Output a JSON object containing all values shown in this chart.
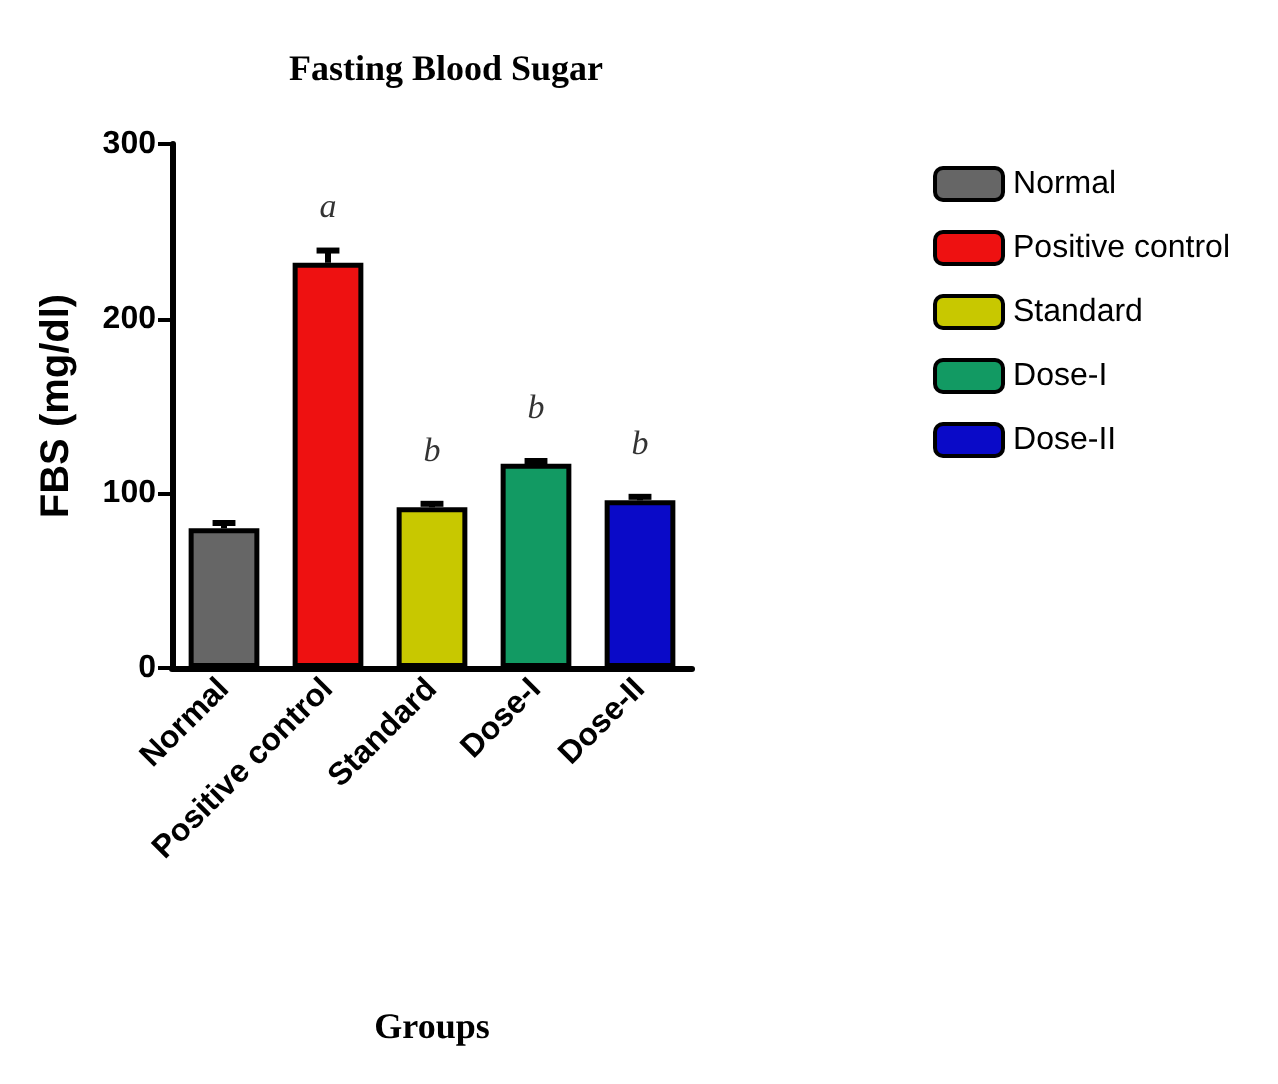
{
  "chart_data": {
    "type": "bar",
    "title": "Fasting Blood Sugar",
    "xlabel": "Groups",
    "ylabel": "FBS (mg/dl)",
    "categories": [
      "Normal",
      "Positive control",
      "Standard",
      "Dose-I",
      "Dose-II"
    ],
    "series": [
      {
        "name": "Normal",
        "color": "#666666",
        "values": [
          80,
          null,
          null,
          null,
          null
        ],
        "errors": [
          3,
          null,
          null,
          null,
          null
        ]
      },
      {
        "name": "Positive control",
        "color": "#ee1111",
        "values": [
          null,
          232,
          null,
          null,
          null
        ],
        "errors": [
          null,
          7,
          null,
          null,
          null
        ]
      },
      {
        "name": "Standard",
        "color": "#c8c800",
        "values": [
          null,
          null,
          92,
          null,
          null
        ],
        "errors": [
          null,
          null,
          2,
          null,
          null
        ]
      },
      {
        "name": "Dose-I",
        "color": "#129a63",
        "values": [
          null,
          null,
          null,
          117,
          null
        ],
        "errors": [
          null,
          null,
          null,
          1.5,
          null
        ]
      },
      {
        "name": "Dose-II",
        "color": "#0a0ac8",
        "values": [
          null,
          null,
          null,
          null,
          96
        ],
        "errors": [
          null,
          null,
          null,
          null,
          2
        ]
      }
    ],
    "ylim": [
      0,
      300
    ],
    "yticks": [
      0,
      100,
      200,
      300
    ],
    "legend": "right",
    "annotations": [
      {
        "text": "a",
        "x": "Positive control",
        "y": 232
      },
      {
        "text": "b",
        "x": "Standard",
        "y": 92
      },
      {
        "text": "b",
        "x": "Dose-I",
        "y": 117
      },
      {
        "text": "b",
        "x": "Dose-II",
        "y": 96
      }
    ]
  }
}
